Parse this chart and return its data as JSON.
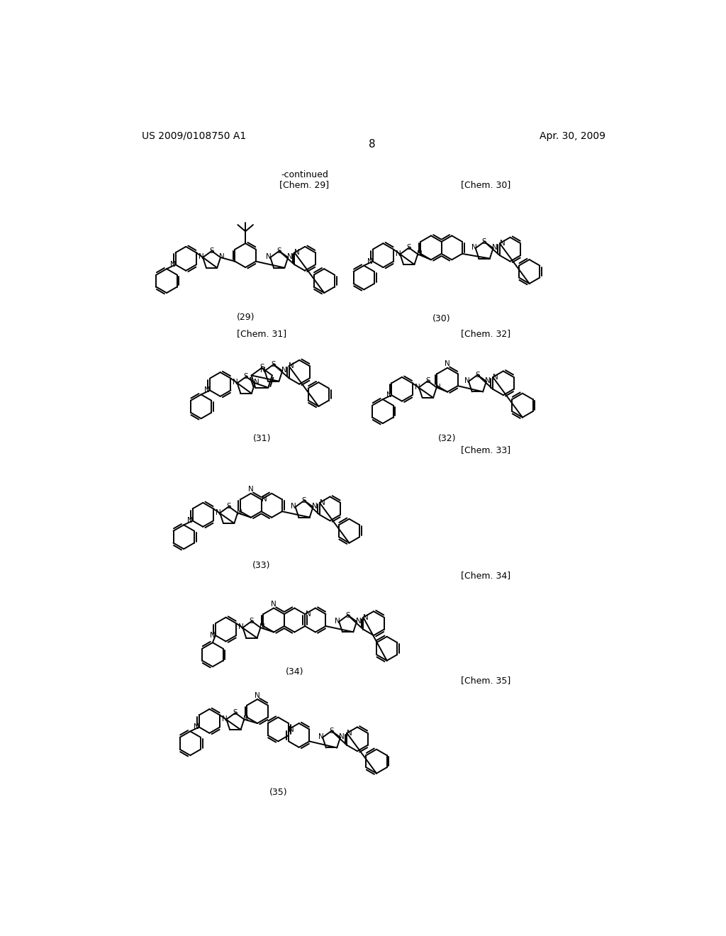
{
  "background_color": "#ffffff",
  "page_number": "8",
  "header_left": "US 2009/0108750 A1",
  "header_right": "Apr. 30, 2009",
  "continued_label": "-continued",
  "chem_labels": [
    "[Chem. 29]",
    "[Chem. 30]",
    "[Chem. 31]",
    "[Chem. 32]",
    "[Chem. 33]",
    "[Chem. 34]",
    "[Chem. 35]"
  ],
  "compound_numbers": [
    "(29)",
    "(30)",
    "(31)",
    "(32)",
    "(33)",
    "(34)",
    "(35)"
  ],
  "fig_width": 10.24,
  "fig_height": 13.2,
  "dpi": 100
}
